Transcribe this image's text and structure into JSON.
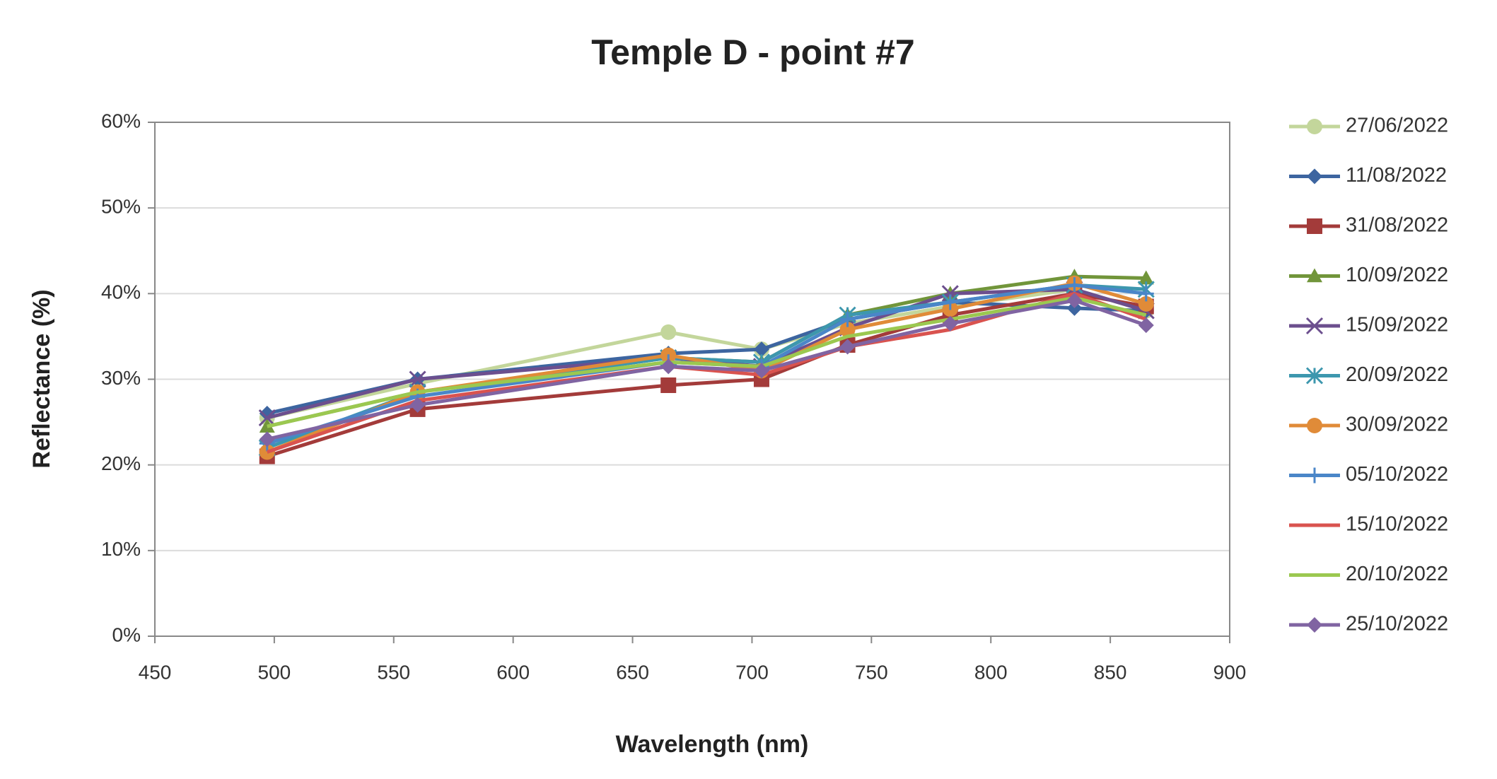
{
  "chart_data": {
    "type": "line",
    "title": "Temple D - point #7",
    "x_label": "Wavelength (nm)",
    "y_label": "Reflectance (%)",
    "x": [
      497,
      560,
      665,
      704,
      740,
      783,
      835,
      865
    ],
    "xlim": [
      450,
      900
    ],
    "xticks": [
      450,
      500,
      550,
      600,
      650,
      700,
      750,
      800,
      850,
      900
    ],
    "ylim": [
      0,
      60
    ],
    "yticks": [
      {
        "value": 0,
        "label": "0%"
      },
      {
        "value": 10,
        "label": "10%"
      },
      {
        "value": 20,
        "label": "20%"
      },
      {
        "value": 30,
        "label": "30%"
      },
      {
        "value": 40,
        "label": "40%"
      },
      {
        "value": 50,
        "label": "50%"
      },
      {
        "value": 60,
        "label": "60%"
      }
    ],
    "grid": true,
    "legend": "right",
    "series": [
      {
        "name": "27/06/2022",
        "color": "#c3d69b",
        "marker": "circle",
        "values": [
          25.5,
          29.5,
          35.5,
          33.5,
          36.5,
          38.5,
          40.5,
          38
        ]
      },
      {
        "name": "11/08/2022",
        "color": "#3d65a0",
        "marker": "diamond",
        "values": [
          26,
          30,
          33,
          33.5,
          37,
          39,
          38.3,
          38
        ]
      },
      {
        "name": "31/08/2022",
        "color": "#a33b3a",
        "marker": "square",
        "values": [
          21,
          26.5,
          29.3,
          30,
          34,
          37.5,
          40,
          38.5
        ]
      },
      {
        "name": "10/09/2022",
        "color": "#71953a",
        "marker": "triangle",
        "values": [
          24.5,
          28.5,
          32.5,
          32,
          37.5,
          40,
          42,
          41.8
        ]
      },
      {
        "name": "15/09/2022",
        "color": "#6c4f8e",
        "marker": "x",
        "values": [
          25.5,
          30,
          32.5,
          31.5,
          36,
          40,
          40.5,
          38
        ]
      },
      {
        "name": "20/09/2022",
        "color": "#3d97ae",
        "marker": "star",
        "values": [
          22,
          28.5,
          32.5,
          32,
          37.5,
          39,
          41,
          40.5
        ]
      },
      {
        "name": "30/09/2022",
        "color": "#e08b38",
        "marker": "circle",
        "values": [
          21.5,
          28.5,
          32.8,
          31,
          35.8,
          38.2,
          41.2,
          38.8
        ]
      },
      {
        "name": "05/10/2022",
        "color": "#4a86c8",
        "marker": "plus",
        "values": [
          22.5,
          28,
          32,
          31.5,
          37,
          39,
          41,
          40
        ]
      },
      {
        "name": "15/10/2022",
        "color": "#d9534f",
        "marker": "none",
        "values": [
          21.5,
          27.5,
          31.5,
          30.5,
          33.8,
          35.8,
          40,
          37
        ]
      },
      {
        "name": "20/10/2022",
        "color": "#9bc850",
        "marker": "none",
        "values": [
          24.5,
          28.5,
          32,
          31.5,
          35,
          37,
          39.5,
          37.5
        ]
      },
      {
        "name": "25/10/2022",
        "color": "#8064a2",
        "marker": "diamond",
        "values": [
          23,
          27,
          31.5,
          31,
          33.8,
          36.5,
          39.2,
          36.3
        ]
      }
    ]
  }
}
